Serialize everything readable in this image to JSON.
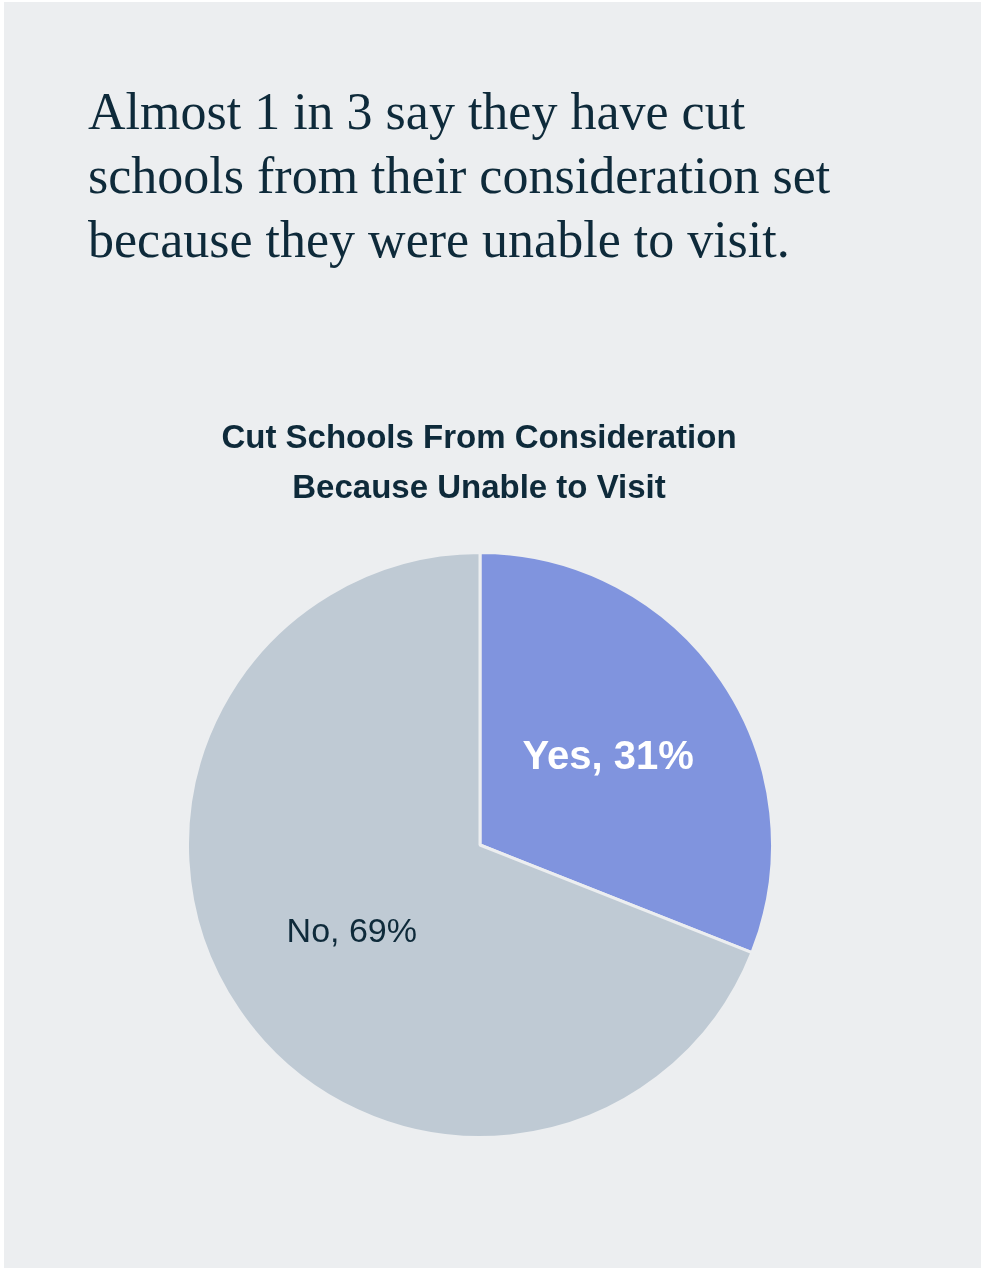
{
  "chart_data": {
    "type": "pie",
    "title": "Almost 1 in 3 say they have cut schools from their consideration set because they were unable to visit.",
    "subtitle": "Cut Schools From Consideration Because Unable to Visit",
    "categories": [
      "Yes",
      "No"
    ],
    "values": [
      31,
      69
    ],
    "colors": [
      "#8094de",
      "#bfcad4"
    ],
    "value_labels": [
      "31%",
      "69%"
    ],
    "legend": false
  }
}
